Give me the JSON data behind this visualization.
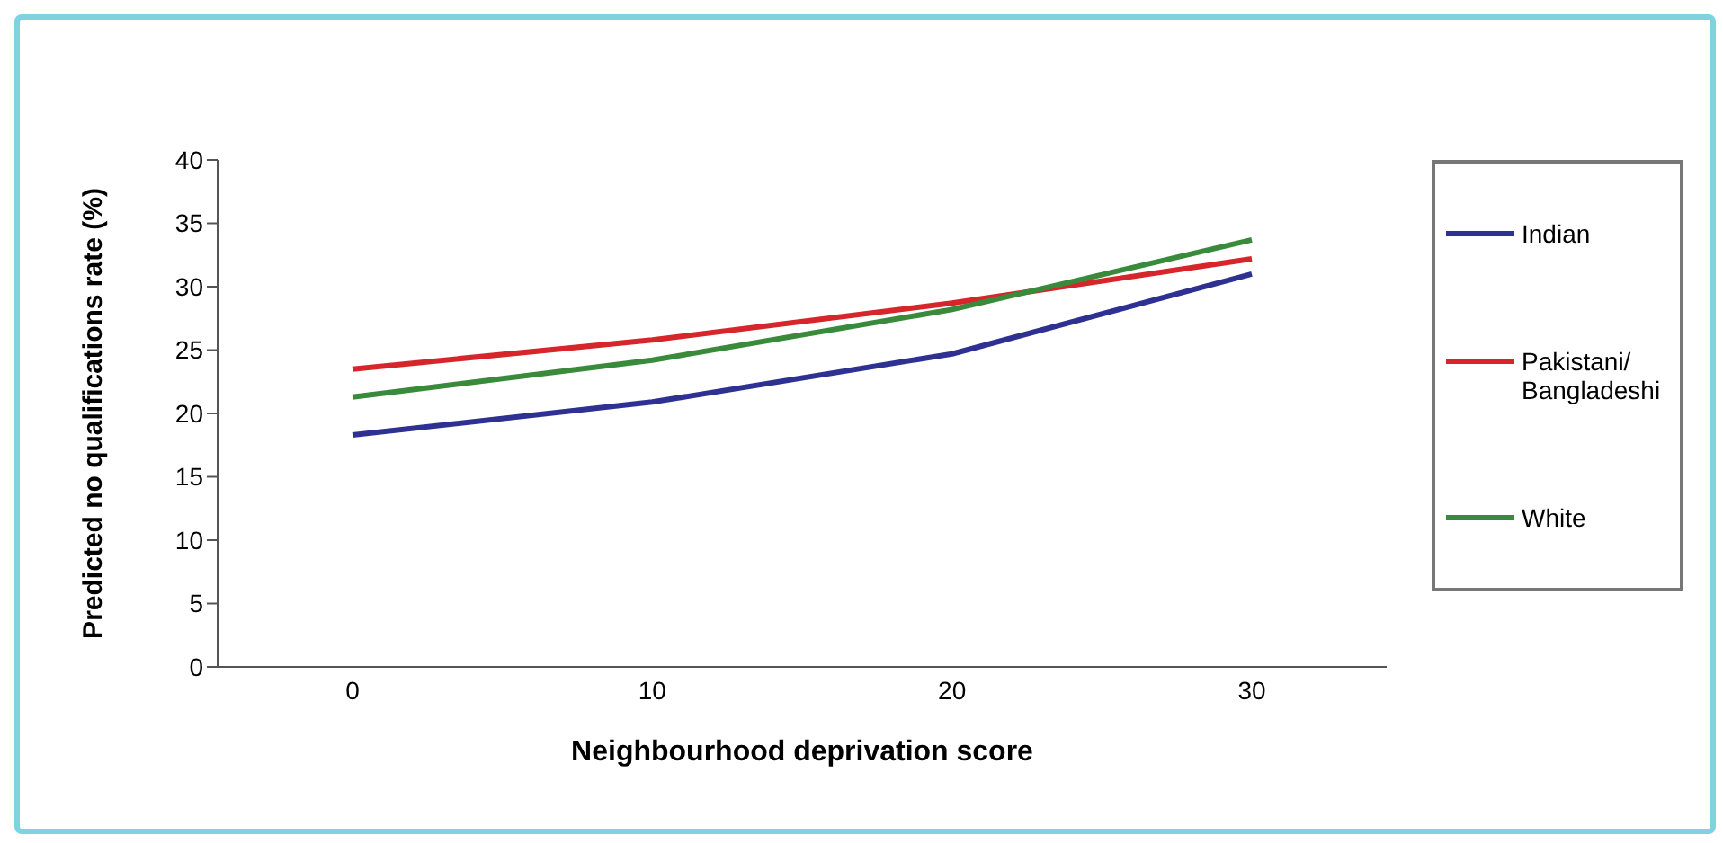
{
  "chart_data": {
    "type": "line",
    "xlabel": "Neighbourhood deprivation score",
    "ylabel": "Predicted no qualifications rate (%)",
    "categories": [
      "0",
      "10",
      "20",
      "30"
    ],
    "series": [
      {
        "name": "Indian",
        "color": "#2e3192",
        "values": [
          18.3,
          20.9,
          24.7,
          31.0
        ]
      },
      {
        "name": "Pakistani/ Bangladeshi",
        "color": "#d7262b",
        "values": [
          23.5,
          25.8,
          28.7,
          32.2
        ]
      },
      {
        "name": "White",
        "color": "#3a8a3c",
        "values": [
          21.3,
          24.2,
          28.2,
          33.7
        ]
      }
    ],
    "ylim": [
      0,
      40
    ],
    "yticks": [
      0,
      5,
      10,
      15,
      20,
      25,
      30,
      35,
      40
    ],
    "grid": false,
    "legend": "right",
    "marker": "none",
    "line_style": "solid"
  }
}
